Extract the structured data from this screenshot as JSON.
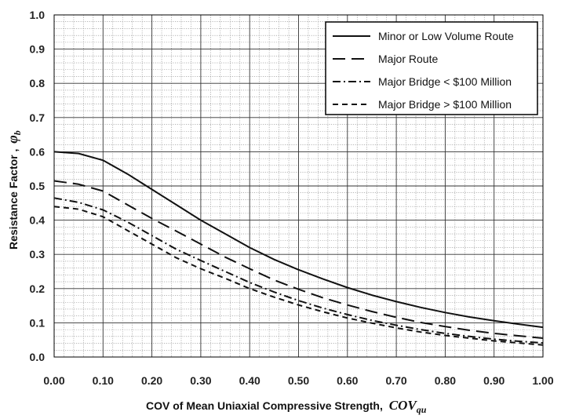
{
  "chart_data": {
    "type": "line",
    "xlabel": "COV of Mean Uniaxial Compressive Strength,",
    "xlabel_symbol": "COV",
    "xlabel_symbol_sub": "qu",
    "ylabel": "Resistance Factor ,",
    "ylabel_symbol": "φ",
    "ylabel_symbol_sub": "b",
    "xlim": [
      0,
      1
    ],
    "ylim": [
      0,
      1
    ],
    "x_ticks": [
      "0.00",
      "0.10",
      "0.20",
      "0.30",
      "0.40",
      "0.50",
      "0.60",
      "0.70",
      "0.80",
      "0.90",
      "1.00"
    ],
    "y_ticks": [
      "0.0",
      "0.1",
      "0.2",
      "0.3",
      "0.4",
      "0.5",
      "0.6",
      "0.7",
      "0.8",
      "0.9",
      "1.0"
    ],
    "grid": true,
    "legend_position": "top-right",
    "x": [
      0.0,
      0.05,
      0.1,
      0.15,
      0.2,
      0.25,
      0.3,
      0.35,
      0.4,
      0.45,
      0.5,
      0.55,
      0.6,
      0.65,
      0.7,
      0.75,
      0.8,
      0.85,
      0.9,
      0.95,
      1.0
    ],
    "series": [
      {
        "name": "Minor or Low Volume Route",
        "dash": "solid",
        "values": [
          0.6,
          0.595,
          0.575,
          0.535,
          0.49,
          0.445,
          0.4,
          0.36,
          0.32,
          0.285,
          0.255,
          0.228,
          0.203,
          0.181,
          0.162,
          0.145,
          0.13,
          0.117,
          0.106,
          0.096,
          0.087
        ]
      },
      {
        "name": "Major Route",
        "dash": "long-dash",
        "values": [
          0.515,
          0.505,
          0.485,
          0.445,
          0.405,
          0.368,
          0.33,
          0.292,
          0.258,
          0.225,
          0.198,
          0.173,
          0.152,
          0.133,
          0.116,
          0.101,
          0.089,
          0.078,
          0.069,
          0.062,
          0.055
        ]
      },
      {
        "name": "Major Bridge < $100 Million",
        "dash": "dash-dot",
        "values": [
          0.465,
          0.452,
          0.43,
          0.395,
          0.355,
          0.315,
          0.282,
          0.25,
          0.218,
          0.19,
          0.165,
          0.143,
          0.124,
          0.107,
          0.093,
          0.08,
          0.069,
          0.06,
          0.052,
          0.046,
          0.041
        ]
      },
      {
        "name": "Major Bridge > $100 Million",
        "dash": "short-dash",
        "values": [
          0.44,
          0.432,
          0.41,
          0.37,
          0.33,
          0.29,
          0.258,
          0.23,
          0.2,
          0.175,
          0.152,
          0.132,
          0.114,
          0.099,
          0.085,
          0.073,
          0.063,
          0.055,
          0.047,
          0.041,
          0.035
        ]
      }
    ]
  }
}
